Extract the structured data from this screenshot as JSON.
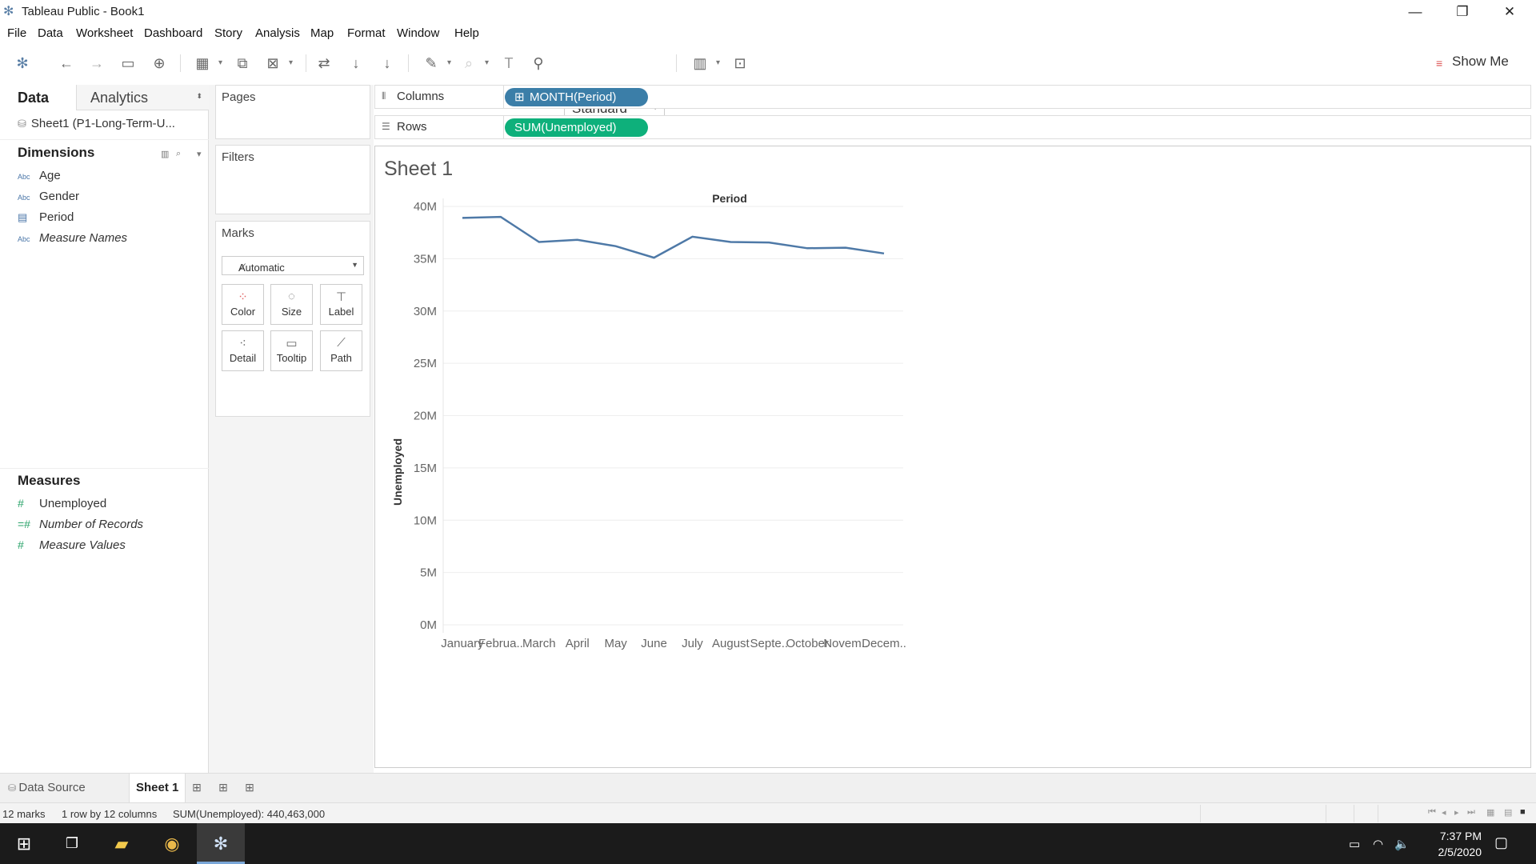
{
  "window": {
    "title": "Tableau Public - Book1"
  },
  "menu": [
    "File",
    "Data",
    "Worksheet",
    "Dashboard",
    "Story",
    "Analysis",
    "Map",
    "Format",
    "Window",
    "Help"
  ],
  "toolbar": {
    "fit_value": "Standard",
    "show_me_label": "Show Me"
  },
  "data_pane": {
    "tab_data": "Data",
    "tab_analytics": "Analytics",
    "datasource": "Sheet1 (P1-Long-Term-U...",
    "dimensions_header": "Dimensions",
    "dimensions": [
      {
        "type": "Abc",
        "label": "Age",
        "italic": false
      },
      {
        "type": "Abc",
        "label": "Gender",
        "italic": false
      },
      {
        "type": "date",
        "label": "Period",
        "italic": false
      },
      {
        "type": "Abc",
        "label": "Measure Names",
        "italic": true
      }
    ],
    "measures_header": "Measures",
    "measures": [
      {
        "type": "#",
        "label": "Unemployed",
        "italic": false
      },
      {
        "type": "=#",
        "label": "Number of Records",
        "italic": true
      },
      {
        "type": "#",
        "label": "Measure Values",
        "italic": true
      }
    ]
  },
  "cards": {
    "pages": "Pages",
    "filters": "Filters",
    "marks": "Marks",
    "mark_type": "Automatic",
    "mark_buttons": [
      "Color",
      "Size",
      "Label",
      "Detail",
      "Tooltip",
      "Path"
    ]
  },
  "shelves": {
    "columns_label": "Columns",
    "columns_pill": "MONTH(Period)",
    "rows_label": "Rows",
    "rows_pill": "SUM(Unemployed)"
  },
  "sheet": {
    "title": "Sheet 1"
  },
  "chart_data": {
    "type": "line",
    "title": "Period",
    "xlabel": "Period",
    "ylabel": "Unemployed",
    "categories": [
      "January",
      "Februa..",
      "March",
      "April",
      "May",
      "June",
      "July",
      "August",
      "Septe..",
      "October",
      "Novem..",
      "Decem.."
    ],
    "series": [
      {
        "name": "SUM(Unemployed)",
        "values": [
          38900000,
          39000000,
          36600000,
          36800000,
          36200000,
          35100000,
          37100000,
          36600000,
          36550000,
          36000000,
          36050000,
          35500000
        ]
      }
    ],
    "yticks": [
      "0M",
      "5M",
      "10M",
      "15M",
      "20M",
      "25M",
      "30M",
      "35M",
      "40M"
    ],
    "ylim": [
      0,
      40000000
    ],
    "line_color": "#4e79a7",
    "grid": true
  },
  "bottom_tabs": {
    "data_source": "Data Source",
    "sheet": "Sheet 1"
  },
  "status": {
    "marks": "12 marks",
    "dims": "1 row by 12 columns",
    "sum": "SUM(Unemployed): 440,463,000"
  },
  "taskbar": {
    "time": "7:37 PM",
    "date": "2/5/2020"
  }
}
